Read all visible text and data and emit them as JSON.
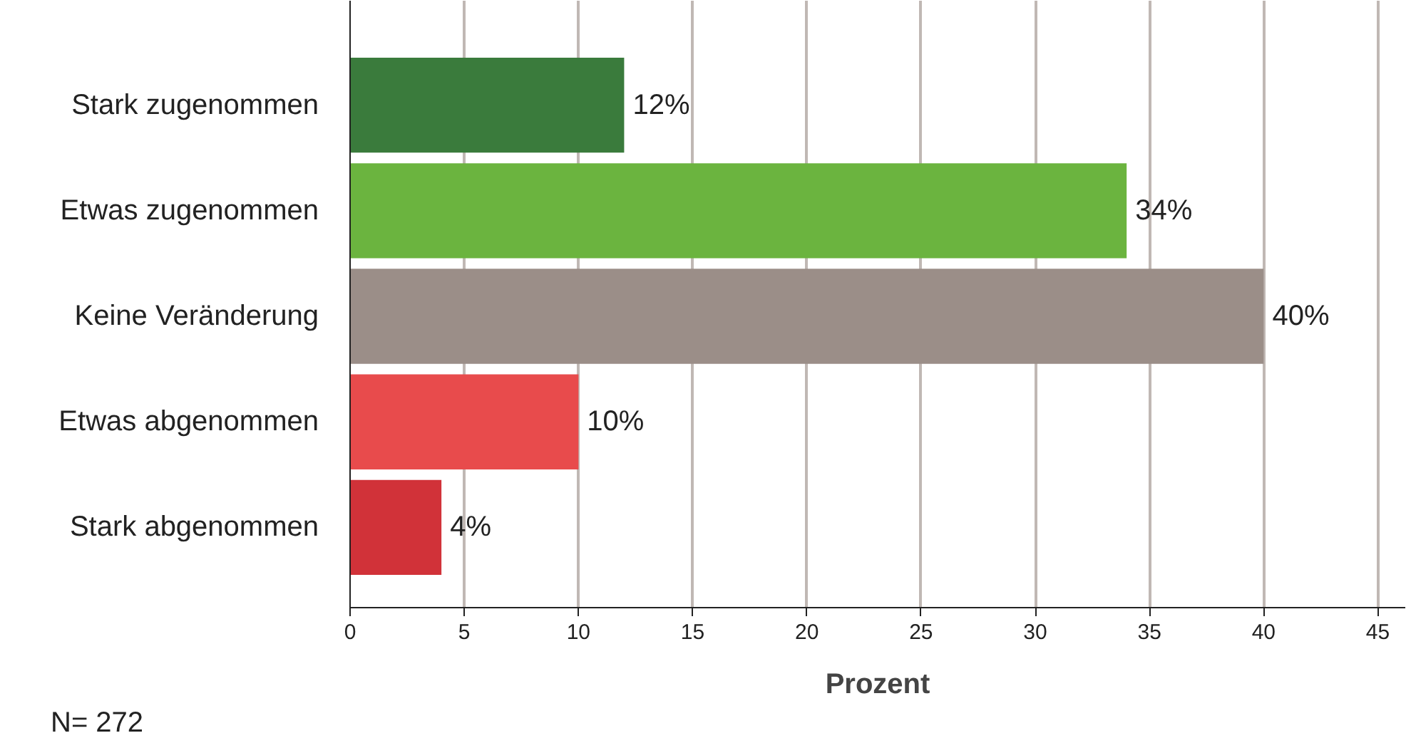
{
  "chart_data": {
    "type": "bar",
    "orientation": "horizontal",
    "categories": [
      "Stark zugenommen",
      "Etwas zugenommen",
      "Keine Veränderung",
      "Etwas abgenommen",
      "Stark abgenommen"
    ],
    "values": [
      12,
      34,
      40,
      10,
      4
    ],
    "colors": [
      "#3a7b3c",
      "#6bb43f",
      "#9b8e88",
      "#e84b4c",
      "#d13239"
    ],
    "value_labels": [
      "12%",
      "34%",
      "40%",
      "10%",
      "4%"
    ],
    "xlim": [
      0,
      46.2
    ],
    "xticks": [
      0,
      5,
      10,
      15,
      20,
      25,
      30,
      35,
      40,
      45
    ],
    "xlabel": "Prozent",
    "grid": "x",
    "annotations": [
      "N= 272"
    ]
  }
}
